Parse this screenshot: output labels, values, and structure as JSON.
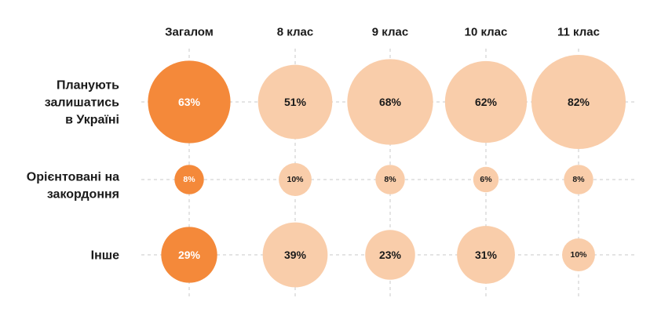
{
  "chart_data": {
    "type": "bubble-grid",
    "columns": [
      "Загалом",
      "8 клас",
      "9 клас",
      "10 клас",
      "11 клас"
    ],
    "rows": [
      {
        "label_lines": [
          "Планують",
          "залишатись",
          "в Україні"
        ],
        "values": [
          63,
          51,
          68,
          62,
          82
        ],
        "labels": [
          "63%",
          "51%",
          "68%",
          "62%",
          "82%"
        ]
      },
      {
        "label_lines": [
          "Орієнтовані на",
          "закордоння"
        ],
        "values": [
          8,
          10,
          8,
          6,
          8
        ],
        "labels": [
          "8%",
          "10%",
          "8%",
          "6%",
          "8%"
        ]
      },
      {
        "label_lines": [
          "Інше"
        ],
        "values": [
          29,
          39,
          23,
          31,
          10
        ],
        "labels": [
          "29%",
          "39%",
          "23%",
          "31%",
          "10%"
        ]
      }
    ],
    "colors": {
      "highlight": "#f4893a",
      "default": "#f9cdaa",
      "highlight_text": "#ffffff",
      "default_text": "#1a1a1a",
      "grid": "#c8c8c8"
    },
    "highlight_column": 0,
    "grid": true
  }
}
